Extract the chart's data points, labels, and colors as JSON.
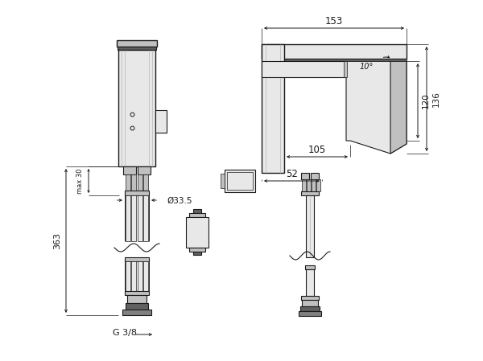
{
  "bg_color": "#ffffff",
  "line_color": "#1a1a1a",
  "fill_light": "#e8e8e8",
  "fill_medium": "#c0c0c0",
  "fill_dark": "#808080",
  "fill_darker": "#606060",
  "figsize": [
    6.0,
    4.49
  ],
  "dpi": 100,
  "annotations": {
    "dim_363": "363",
    "dim_max30": "max 30",
    "dim_33_5": "Ø33.5",
    "dim_G38": "G 3/8",
    "dim_153": "153",
    "dim_105": "105",
    "dim_52": "52",
    "dim_120": "120",
    "dim_136": "136",
    "dim_10deg": "10°"
  }
}
